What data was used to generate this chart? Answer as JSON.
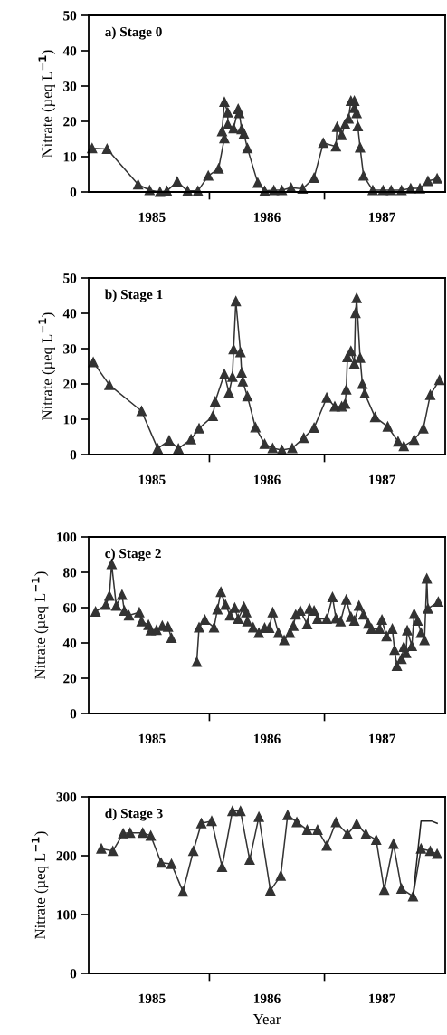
{
  "chart_data": [
    {
      "type": "line",
      "ylabel": "Nitrate (µeq L$^{−1}$)",
      "annotations": [
        "a) Stage 0"
      ],
      "xlim": [
        1984.95,
        1988.05
      ],
      "ylim": [
        0,
        50
      ],
      "yticks": [
        0,
        10,
        20,
        30,
        40,
        50
      ],
      "xticks": [
        {
          "value": 1985.5,
          "label": "1985"
        },
        {
          "value": 1986,
          "label": null
        },
        {
          "value": 1986.5,
          "label": "1986"
        },
        {
          "value": 1987,
          "label": null
        },
        {
          "value": 1987.5,
          "label": "1987"
        }
      ],
      "marker": "triangle",
      "grid": false,
      "series": [
        {
          "color": "#333333",
          "x": [
            1984.98,
            1985.11,
            1985.38,
            1985.48,
            1985.57,
            1985.63,
            1985.72,
            1985.81,
            1985.9,
            1985.99,
            1986.08,
            1986.13,
            1986.11,
            1986.13,
            1986.16,
            1986.16,
            1986.21,
            1986.25,
            1986.26,
            1986.28,
            1986.3,
            1986.33,
            1986.42,
            1986.48,
            1986.56,
            1986.63,
            1986.71,
            1986.81,
            1986.91,
            1986.99,
            1987.1,
            1987.11,
            1987.15,
            1987.18,
            1987.21,
            1987.23,
            1987.26,
            1987.26,
            1987.28,
            1987.29,
            1987.31,
            1987.34,
            1987.42,
            1987.51,
            1987.58,
            1987.67,
            1987.75,
            1987.83,
            1987.9,
            1987.98
          ],
          "values": [
            12.4,
            12.2,
            2.1,
            0.5,
            0,
            0.3,
            2.9,
            0.3,
            0.3,
            4.6,
            6.6,
            15.2,
            17.2,
            25.5,
            22.5,
            19.1,
            18.0,
            23.5,
            22.3,
            17.8,
            16.5,
            12.4,
            2.6,
            0.3,
            0.5,
            0.5,
            1.2,
            0.9,
            4.0,
            13.9,
            12.9,
            18.4,
            16.1,
            19.2,
            20.8,
            25.8,
            25.8,
            23.8,
            22.3,
            18.6,
            12.6,
            4.6,
            0.5,
            0.5,
            0.5,
            0.5,
            1.0,
            1.0,
            3.1,
            3.8
          ]
        }
      ]
    },
    {
      "type": "line",
      "ylabel": "Nitrate (µeq L$^{−1}$)",
      "annotations": [
        "b) Stage 1"
      ],
      "xlim": [
        1984.95,
        1988.05
      ],
      "ylim": [
        0,
        50
      ],
      "yticks": [
        0,
        10,
        20,
        30,
        40,
        50
      ],
      "xticks": [
        {
          "value": 1985.5,
          "label": "1985"
        },
        {
          "value": 1986,
          "label": null
        },
        {
          "value": 1986.5,
          "label": "1986"
        },
        {
          "value": 1987,
          "label": null
        },
        {
          "value": 1987.5,
          "label": "1987"
        }
      ],
      "marker": "triangle",
      "grid": false,
      "series": [
        {
          "color": "#333333",
          "x": [
            1984.99,
            1985.13,
            1985.41,
            1985.55,
            1985.65,
            1985.73,
            1985.84,
            1985.91,
            1986.03,
            1986.05,
            1986.13,
            1986.17,
            1986.2,
            1986.21,
            1986.23,
            1986.27,
            1986.28,
            1986.29,
            1986.33,
            1986.4,
            1986.48,
            1986.55,
            1986.63,
            1986.72,
            1986.82,
            1986.91,
            1987.02,
            1987.09,
            1987.15,
            1987.18,
            1987.19,
            1987.2,
            1987.23,
            1987.26,
            1987.27,
            1987.28,
            1987.31,
            1987.33,
            1987.35,
            1987.44,
            1987.55,
            1987.64,
            1987.69,
            1987.78,
            1987.86,
            1987.92,
            1988.0
          ],
          "values": [
            26.2,
            19.7,
            12.3,
            1.7,
            4.0,
            1.7,
            4.3,
            7.4,
            10.9,
            15.0,
            22.8,
            17.5,
            22.0,
            29.8,
            43.4,
            29.0,
            23.2,
            20.7,
            16.5,
            7.7,
            3.0,
            1.8,
            1.3,
            1.8,
            4.7,
            7.6,
            16.1,
            13.6,
            13.6,
            14.4,
            18.4,
            27.6,
            29.3,
            25.8,
            40.1,
            44.3,
            27.4,
            20.0,
            17.3,
            10.6,
            7.9,
            3.7,
            2.4,
            4.2,
            7.4,
            16.9,
            21.1
          ]
        }
      ]
    },
    {
      "type": "line",
      "ylabel": "Nitrate (µeq L$^{−1}$)",
      "annotations": [
        "c) Stage 2"
      ],
      "xlim": [
        1984.95,
        1988.05
      ],
      "ylim": [
        0,
        100
      ],
      "yticks": [
        0,
        20,
        40,
        60,
        80,
        100
      ],
      "xticks": [
        {
          "value": 1985.5,
          "label": "1985"
        },
        {
          "value": 1986,
          "label": null
        },
        {
          "value": 1986.5,
          "label": "1986"
        },
        {
          "value": 1987,
          "label": null
        },
        {
          "value": 1987.5,
          "label": "1987"
        }
      ],
      "marker": "triangle",
      "grid": false,
      "series": [
        {
          "color": "#333333",
          "x": [
            1985.01,
            1985.1,
            1985.13,
            1985.15,
            1985.19,
            1985.24,
            1985.26,
            1985.3,
            1985.39,
            1985.41,
            1985.47,
            1985.49,
            1985.54,
            1985.59,
            1985.64,
            1985.67,
            1985.78,
            1985.89,
            1985.91,
            1985.96,
            1986.04,
            1986.07,
            1986.1,
            1986.14,
            1986.18,
            1986.22,
            1986.25,
            1986.3,
            1986.32,
            1986.33,
            1986.38,
            1986.43,
            1986.48,
            1986.52,
            1986.55,
            1986.6,
            1986.65,
            1986.7,
            1986.73,
            1986.75,
            1986.79,
            1986.85,
            1986.87,
            1986.91,
            1986.94,
            1987.02,
            1987.07,
            1987.1,
            1987.14,
            1987.19,
            1987.23,
            1987.26,
            1987.3,
            1987.34,
            1987.38,
            1987.41,
            1987.48,
            1987.5,
            1987.54,
            1987.59,
            1987.61,
            1987.63,
            1987.67,
            1987.69,
            1987.71,
            1987.72,
            1987.76,
            1987.78,
            1987.81,
            1987.84,
            1987.87,
            1987.89,
            1987.9,
            1987.99
          ],
          "values": [
            57.7,
            61.6,
            66.7,
            84.6,
            61.1,
            67.2,
            58.2,
            55.6,
            57.3,
            52.2,
            50.2,
            47.1,
            47.4,
            49.7,
            49.1,
            42.8,
            null,
            29.2,
            48.8,
            53.1,
            48.8,
            59.0,
            68.9,
            61.6,
            55.6,
            59.9,
            53.6,
            60.4,
            57.3,
            52.2,
            48.8,
            45.7,
            48.5,
            48.5,
            57.3,
            45.7,
            41.6,
            45.7,
            49.7,
            56.0,
            58.2,
            50.5,
            59.4,
            58.2,
            53.6,
            53.6,
            65.9,
            53.9,
            52.2,
            64.5,
            54.8,
            52.6,
            61.1,
            56.0,
            50.9,
            48.0,
            48.0,
            53.1,
            43.7,
            48.0,
            36.0,
            27.0,
            30.9,
            37.7,
            34.3,
            47.1,
            38.2,
            56.5,
            52.6,
            45.7,
            41.6,
            76.5,
            59.4,
            63.3
          ]
        }
      ]
    },
    {
      "type": "line",
      "ylabel": "Nitrate (µeq L$^{−1}$)",
      "xlabel": "Year",
      "annotations": [
        "d) Stage 3"
      ],
      "xlim": [
        1984.95,
        1988.05
      ],
      "ylim": [
        0,
        300
      ],
      "yticks": [
        0,
        100,
        200,
        300
      ],
      "xticks": [
        {
          "value": 1985.5,
          "label": "1985"
        },
        {
          "value": 1986,
          "label": null
        },
        {
          "value": 1986.5,
          "label": "1986"
        },
        {
          "value": 1987,
          "label": null
        },
        {
          "value": 1987.5,
          "label": "1987"
        }
      ],
      "marker": "triangle",
      "grid": false,
      "series": [
        {
          "color": "#333333",
          "x": [
            1985.06,
            1985.16,
            1985.25,
            1985.31,
            1985.42,
            1985.49,
            1985.58,
            1985.67,
            1985.77,
            1985.86,
            1985.93,
            1986.02,
            1986.11,
            1986.2,
            1986.27,
            1986.35,
            1986.43,
            1986.53,
            1986.62,
            1986.68,
            1986.76,
            1986.85,
            1986.94,
            1987.02,
            1987.1,
            1987.2,
            1987.28,
            1987.36,
            1987.45,
            1987.52,
            1987.6,
            1987.67,
            1987.77,
            1987.84,
            1987.92,
            1987.98
          ],
          "values": [
            212,
            208,
            238,
            239,
            239,
            234,
            188,
            186,
            139,
            208,
            255,
            259,
            181,
            276,
            276,
            193,
            266,
            141,
            166,
            269,
            257,
            244,
            244,
            217,
            257,
            237,
            254,
            237,
            227,
            142,
            220,
            144,
            131,
            212,
            208,
            203
          ]
        },
        {
          "color": "#222222",
          "marker": "none",
          "x": [
            1987.77,
            1987.84,
            1987.93,
            1987.98
          ],
          "values": [
            131,
            259,
            259,
            255
          ]
        }
      ]
    }
  ]
}
